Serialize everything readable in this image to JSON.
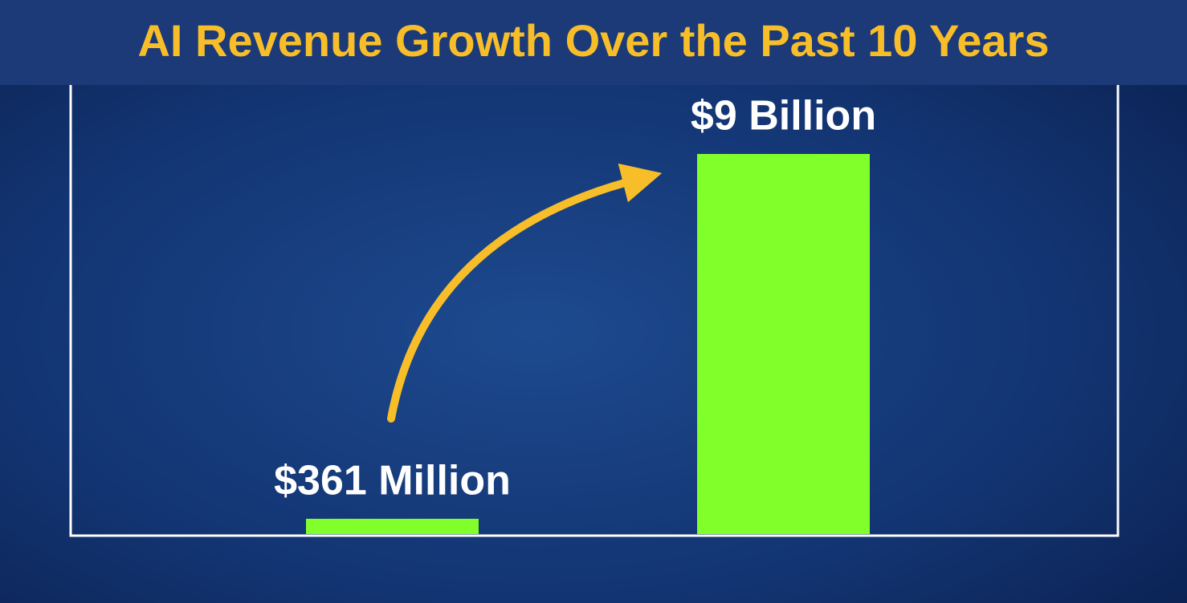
{
  "chart_data": {
    "type": "bar",
    "title": "AI Revenue Growth Over the Past 10 Years",
    "categories": [
      null,
      null
    ],
    "values": [
      361000000,
      9000000000
    ],
    "value_labels": [
      "$361 Million",
      "$9 Billion"
    ],
    "color": "#80ff2a"
  }
}
